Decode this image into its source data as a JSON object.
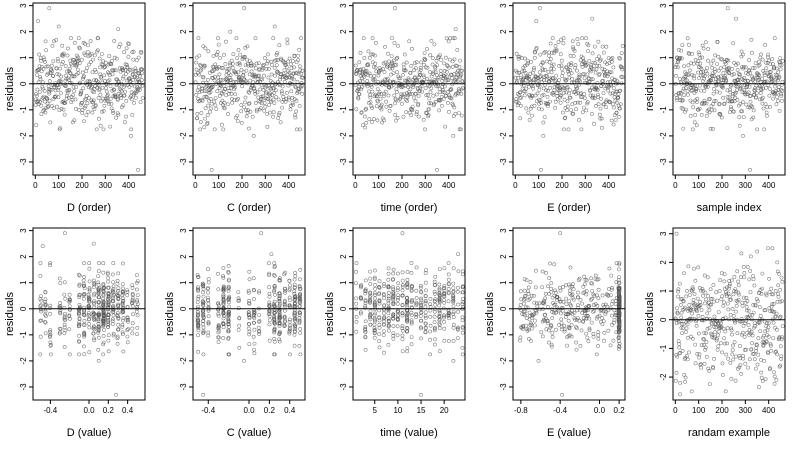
{
  "figure": {
    "background": "#ffffff",
    "point_color": "#555555",
    "line_color": "#000000"
  },
  "chart_data": [
    {
      "type": "scatter",
      "xlabel": "D (order)",
      "ylabel": "residuals",
      "xlim": [
        -10,
        470
      ],
      "ylim": [
        -3.5,
        3.1
      ],
      "xticks": [
        0,
        100,
        200,
        300,
        400
      ],
      "xtick_labels": [
        "0",
        "100",
        "200",
        "300",
        "400"
      ],
      "yticks": [
        -3,
        -2,
        -1,
        0,
        1,
        2,
        3
      ],
      "ytick_labels": [
        "-3",
        "-2",
        "-1",
        "0",
        "1",
        "2",
        "3"
      ],
      "hline": 0,
      "gen": {
        "n": 460,
        "mode": "order",
        "xmin": 1,
        "xmax": 460,
        "seed": 11,
        "outliers": [
          [
            12,
            2.4
          ],
          [
            60,
            2.9
          ],
          [
            100,
            2.2
          ],
          [
            355,
            2.1
          ],
          [
            440,
            -3.3
          ],
          [
            410,
            -2.0
          ]
        ]
      }
    },
    {
      "type": "scatter",
      "xlabel": "C (order)",
      "ylabel": "residuals",
      "xlim": [
        -10,
        470
      ],
      "ylim": [
        -3.5,
        3.1
      ],
      "xticks": [
        0,
        100,
        200,
        300,
        400
      ],
      "xtick_labels": [
        "0",
        "100",
        "200",
        "300",
        "400"
      ],
      "yticks": [
        -3,
        -2,
        -1,
        0,
        1,
        2,
        3
      ],
      "ytick_labels": [
        "-3",
        "-2",
        "-1",
        "0",
        "1",
        "2",
        "3"
      ],
      "hline": 0,
      "gen": {
        "n": 460,
        "mode": "order",
        "xmin": 1,
        "xmax": 460,
        "seed": 22,
        "outliers": [
          [
            210,
            2.9
          ],
          [
            70,
            -3.3
          ],
          [
            250,
            -2.0
          ],
          [
            340,
            2.2
          ],
          [
            150,
            2.0
          ]
        ]
      }
    },
    {
      "type": "scatter",
      "xlabel": "time (order)",
      "ylabel": "residuals",
      "xlim": [
        -10,
        470
      ],
      "ylim": [
        -3.5,
        3.1
      ],
      "xticks": [
        0,
        100,
        200,
        300,
        400
      ],
      "xtick_labels": [
        "0",
        "100",
        "200",
        "300",
        "400"
      ],
      "yticks": [
        -3,
        -2,
        -1,
        0,
        1,
        2,
        3
      ],
      "ytick_labels": [
        "-3",
        "-2",
        "-1",
        "0",
        "1",
        "2",
        "3"
      ],
      "hline": 0,
      "gen": {
        "n": 460,
        "mode": "order",
        "xmin": 1,
        "xmax": 460,
        "seed": 33,
        "outliers": [
          [
            170,
            2.9
          ],
          [
            350,
            -3.3
          ],
          [
            420,
            -2.0
          ],
          [
            430,
            2.1
          ]
        ]
      }
    },
    {
      "type": "scatter",
      "xlabel": "E (order)",
      "ylabel": "residuals",
      "xlim": [
        -10,
        470
      ],
      "ylim": [
        -3.5,
        3.1
      ],
      "xticks": [
        0,
        100,
        200,
        300,
        400
      ],
      "xtick_labels": [
        "0",
        "100",
        "200",
        "300",
        "400"
      ],
      "yticks": [
        -3,
        -2,
        -1,
        0,
        1,
        2,
        3
      ],
      "ytick_labels": [
        "-3",
        "-2",
        "-1",
        "0",
        "1",
        "2",
        "3"
      ],
      "hline": 0,
      "gen": {
        "n": 460,
        "mode": "order",
        "xmin": 1,
        "xmax": 460,
        "seed": 44,
        "outliers": [
          [
            105,
            2.9
          ],
          [
            110,
            -3.3
          ],
          [
            90,
            2.4
          ],
          [
            330,
            2.5
          ],
          [
            120,
            -2.0
          ]
        ]
      }
    },
    {
      "type": "scatter",
      "xlabel": "sample index",
      "ylabel": "residuals",
      "xlim": [
        -10,
        470
      ],
      "ylim": [
        -3.5,
        3.1
      ],
      "xticks": [
        0,
        100,
        200,
        300,
        400
      ],
      "xtick_labels": [
        "0",
        "100",
        "200",
        "300",
        "400"
      ],
      "yticks": [
        -3,
        -2,
        -1,
        0,
        1,
        2,
        3
      ],
      "ytick_labels": [
        "-3",
        "-2",
        "-1",
        "0",
        "1",
        "2",
        "3"
      ],
      "hline": 0,
      "gen": {
        "n": 460,
        "mode": "order",
        "xmin": 1,
        "xmax": 460,
        "seed": 55,
        "outliers": [
          [
            225,
            2.9
          ],
          [
            320,
            -3.3
          ],
          [
            260,
            2.5
          ],
          [
            290,
            -2.0
          ]
        ]
      }
    },
    {
      "type": "scatter",
      "xlabel": "D (value)",
      "ylabel": "residuals",
      "xlim": [
        -0.58,
        0.58
      ],
      "ylim": [
        -3.5,
        3.1
      ],
      "xticks": [
        -0.4,
        0.0,
        0.2,
        0.4
      ],
      "xtick_labels": [
        "-0.4",
        "0.0",
        "0.2",
        "0.4"
      ],
      "yticks": [
        -3,
        -2,
        -1,
        0,
        1,
        2,
        3
      ],
      "ytick_labels": [
        "-3",
        "-2",
        "-1",
        "0",
        "1",
        "2",
        "3"
      ],
      "hline": 0,
      "gen": {
        "n": 460,
        "mode": "levels",
        "levels": [
          -0.5,
          -0.45,
          -0.4,
          -0.3,
          -0.25,
          -0.2,
          -0.1,
          -0.05,
          0.0,
          0.05,
          0.1,
          0.15,
          0.2,
          0.25,
          0.3,
          0.35,
          0.4,
          0.45,
          0.5
        ],
        "weights": [
          1,
          1,
          1,
          1,
          1,
          1,
          2,
          2,
          2,
          2,
          3,
          4,
          3,
          2,
          2,
          2,
          1,
          1,
          1
        ],
        "jitter": 0.006,
        "seed": 66,
        "outliers": [
          [
            -0.48,
            2.4
          ],
          [
            -0.25,
            2.9
          ],
          [
            0.05,
            2.5
          ],
          [
            0.28,
            -3.3
          ],
          [
            0.1,
            -2.0
          ]
        ]
      }
    },
    {
      "type": "scatter",
      "xlabel": "C (value)",
      "ylabel": "residuals",
      "xlim": [
        -0.55,
        0.55
      ],
      "ylim": [
        -3.5,
        3.1
      ],
      "xticks": [
        -0.4,
        0.0,
        0.2,
        0.4
      ],
      "xtick_labels": [
        "-0.4",
        "0.0",
        "0.2",
        "0.4"
      ],
      "yticks": [
        -3,
        -2,
        -1,
        0,
        1,
        2,
        3
      ],
      "ytick_labels": [
        "-3",
        "-2",
        "-1",
        "0",
        "1",
        "2",
        "3"
      ],
      "hline": 0,
      "gen": {
        "n": 460,
        "mode": "levels",
        "levels": [
          -0.5,
          -0.45,
          -0.4,
          -0.3,
          -0.25,
          -0.2,
          -0.1,
          0.0,
          0.05,
          0.1,
          0.2,
          0.25,
          0.3,
          0.35,
          0.4,
          0.45,
          0.5
        ],
        "weights": [
          3,
          3,
          2,
          2,
          4,
          4,
          1,
          2,
          2,
          1,
          2,
          4,
          4,
          2,
          2,
          4,
          3
        ],
        "jitter": 0.005,
        "seed": 77,
        "outliers": [
          [
            -0.45,
            -3.3
          ],
          [
            0.12,
            2.9
          ],
          [
            0.22,
            2.1
          ],
          [
            -0.05,
            -2.0
          ]
        ]
      }
    },
    {
      "type": "scatter",
      "xlabel": "time (value)",
      "ylabel": "residuals",
      "xlim": [
        0.3,
        24.5
      ],
      "ylim": [
        -3.5,
        3.1
      ],
      "xticks": [
        5,
        10,
        15,
        20
      ],
      "xtick_labels": [
        "5",
        "10",
        "15",
        "20"
      ],
      "yticks": [
        -3,
        -2,
        -1,
        0,
        1,
        2,
        3
      ],
      "ytick_labels": [
        "-3",
        "-2",
        "-1",
        "0",
        "1",
        "2",
        "3"
      ],
      "hline": 0,
      "gen": {
        "n": 460,
        "mode": "levels",
        "levels": [
          1,
          2,
          3,
          4,
          5,
          6,
          7,
          8,
          9,
          10,
          11,
          12,
          13,
          14,
          15,
          16,
          17,
          18,
          19,
          20,
          21,
          22,
          23,
          24
        ],
        "weights": [
          1,
          1,
          2,
          2,
          3,
          2,
          2,
          3,
          3,
          2,
          2,
          4,
          2,
          1,
          2,
          2,
          1,
          2,
          3,
          2,
          2,
          2,
          1,
          2
        ],
        "jitter": 0.08,
        "seed": 88,
        "outliers": [
          [
            11,
            2.9
          ],
          [
            15,
            -3.3
          ],
          [
            23,
            2.1
          ],
          [
            22,
            -2.0
          ]
        ]
      }
    },
    {
      "type": "scatter",
      "xlabel": "E (value)",
      "ylabel": "residuals",
      "xlim": [
        -0.88,
        0.26
      ],
      "ylim": [
        -3.5,
        3.1
      ],
      "xticks": [
        -0.8,
        -0.4,
        0.0,
        0.2
      ],
      "xtick_labels": [
        "-0.8",
        "-0.4",
        "0.0",
        "0.2"
      ],
      "yticks": [
        -3,
        -2,
        -1,
        0,
        1,
        2,
        3
      ],
      "ytick_labels": [
        "-3",
        "-2",
        "-1",
        "0",
        "1",
        "2",
        "3"
      ],
      "hline": 0,
      "gen": {
        "n": 460,
        "mode": "spread_plus_cluster",
        "xmin": -0.82,
        "xmax": 0.18,
        "cluster_x": 0.2,
        "cluster_jitter": 0.006,
        "cluster_frac": 0.3,
        "seed": 99,
        "outliers": [
          [
            -0.4,
            2.9
          ],
          [
            -0.38,
            -3.3
          ],
          [
            0.2,
            1.7
          ],
          [
            -0.62,
            -2.0
          ]
        ]
      }
    },
    {
      "type": "scatter",
      "xlabel": "randam example",
      "ylabel": "residuals",
      "xlim": [
        -10,
        470
      ],
      "ylim": [
        -2.8,
        3.2
      ],
      "xticks": [
        0,
        100,
        200,
        300,
        400
      ],
      "xtick_labels": [
        "0",
        "100",
        "200",
        "300",
        "400"
      ],
      "yticks": [
        -2,
        -1,
        0,
        1,
        2,
        3
      ],
      "ytick_labels": [
        "-2",
        "-1",
        "0",
        "1",
        "2",
        "3"
      ],
      "hline": 0,
      "gen": {
        "n": 460,
        "mode": "order",
        "xmin": 1,
        "xmax": 460,
        "sd": 1.0,
        "seed": 111,
        "outliers": [
          [
            5,
            3.0
          ],
          [
            20,
            -2.6
          ],
          [
            450,
            -1.6
          ]
        ]
      }
    }
  ]
}
